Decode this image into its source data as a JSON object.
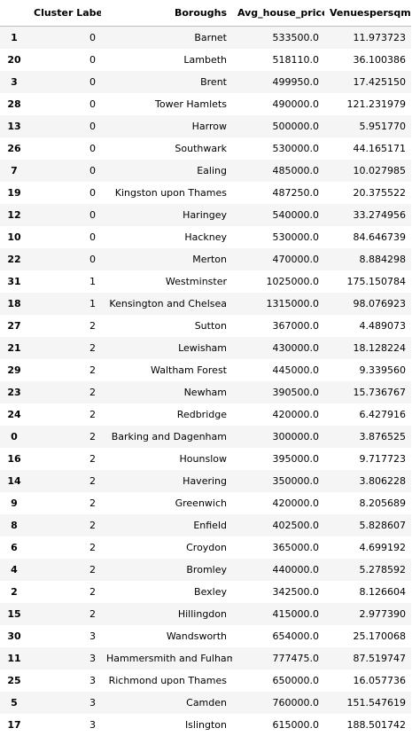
{
  "table": {
    "columns": [
      "",
      "Cluster Label",
      "Boroughs",
      "Avg_house_price",
      "Venuespersqmi"
    ],
    "rows": [
      {
        "index": "1",
        "cluster": "0",
        "borough": "Barnet",
        "price": "533500.0",
        "venues": "11.973723"
      },
      {
        "index": "20",
        "cluster": "0",
        "borough": "Lambeth",
        "price": "518110.0",
        "venues": "36.100386"
      },
      {
        "index": "3",
        "cluster": "0",
        "borough": "Brent",
        "price": "499950.0",
        "venues": "17.425150"
      },
      {
        "index": "28",
        "cluster": "0",
        "borough": "Tower Hamlets",
        "price": "490000.0",
        "venues": "121.231979"
      },
      {
        "index": "13",
        "cluster": "0",
        "borough": "Harrow",
        "price": "500000.0",
        "venues": "5.951770"
      },
      {
        "index": "26",
        "cluster": "0",
        "borough": "Southwark",
        "price": "530000.0",
        "venues": "44.165171"
      },
      {
        "index": "7",
        "cluster": "0",
        "borough": "Ealing",
        "price": "485000.0",
        "venues": "10.027985"
      },
      {
        "index": "19",
        "cluster": "0",
        "borough": "Kingston upon Thames",
        "price": "487250.0",
        "venues": "20.375522"
      },
      {
        "index": "12",
        "cluster": "0",
        "borough": "Haringey",
        "price": "540000.0",
        "venues": "33.274956"
      },
      {
        "index": "10",
        "cluster": "0",
        "borough": "Hackney",
        "price": "530000.0",
        "venues": "84.646739"
      },
      {
        "index": "22",
        "cluster": "0",
        "borough": "Merton",
        "price": "470000.0",
        "venues": "8.884298"
      },
      {
        "index": "31",
        "cluster": "1",
        "borough": "Westminster",
        "price": "1025000.0",
        "venues": "175.150784"
      },
      {
        "index": "18",
        "cluster": "1",
        "borough": "Kensington and Chelsea",
        "price": "1315000.0",
        "venues": "98.076923"
      },
      {
        "index": "27",
        "cluster": "2",
        "borough": "Sutton",
        "price": "367000.0",
        "venues": "4.489073"
      },
      {
        "index": "21",
        "cluster": "2",
        "borough": "Lewisham",
        "price": "430000.0",
        "venues": "18.128224"
      },
      {
        "index": "29",
        "cluster": "2",
        "borough": "Waltham Forest",
        "price": "445000.0",
        "venues": "9.339560"
      },
      {
        "index": "23",
        "cluster": "2",
        "borough": "Newham",
        "price": "390500.0",
        "venues": "15.736767"
      },
      {
        "index": "24",
        "cluster": "2",
        "borough": "Redbridge",
        "price": "420000.0",
        "venues": "6.427916"
      },
      {
        "index": "0",
        "cluster": "2",
        "borough": "Barking and Dagenham",
        "price": "300000.0",
        "venues": "3.876525"
      },
      {
        "index": "16",
        "cluster": "2",
        "borough": "Hounslow",
        "price": "395000.0",
        "venues": "9.717723"
      },
      {
        "index": "14",
        "cluster": "2",
        "borough": "Havering",
        "price": "350000.0",
        "venues": "3.806228"
      },
      {
        "index": "9",
        "cluster": "2",
        "borough": "Greenwich",
        "price": "420000.0",
        "venues": "8.205689"
      },
      {
        "index": "8",
        "cluster": "2",
        "borough": "Enfield",
        "price": "402500.0",
        "venues": "5.828607"
      },
      {
        "index": "6",
        "cluster": "2",
        "borough": "Croydon",
        "price": "365000.0",
        "venues": "4.699192"
      },
      {
        "index": "4",
        "cluster": "2",
        "borough": "Bromley",
        "price": "440000.0",
        "venues": "5.278592"
      },
      {
        "index": "2",
        "cluster": "2",
        "borough": "Bexley",
        "price": "342500.0",
        "venues": "8.126604"
      },
      {
        "index": "15",
        "cluster": "2",
        "borough": "Hillingdon",
        "price": "415000.0",
        "venues": "2.977390"
      },
      {
        "index": "30",
        "cluster": "3",
        "borough": "Wandsworth",
        "price": "654000.0",
        "venues": "25.170068"
      },
      {
        "index": "11",
        "cluster": "3",
        "borough": "Hammersmith and Fulham",
        "price": "777475.0",
        "venues": "87.519747"
      },
      {
        "index": "25",
        "cluster": "3",
        "borough": "Richmond upon Thames",
        "price": "650000.0",
        "venues": "16.057736"
      },
      {
        "index": "5",
        "cluster": "3",
        "borough": "Camden",
        "price": "760000.0",
        "venues": "151.547619"
      },
      {
        "index": "17",
        "cluster": "3",
        "borough": "Islington",
        "price": "615000.0",
        "venues": "188.501742"
      }
    ]
  }
}
